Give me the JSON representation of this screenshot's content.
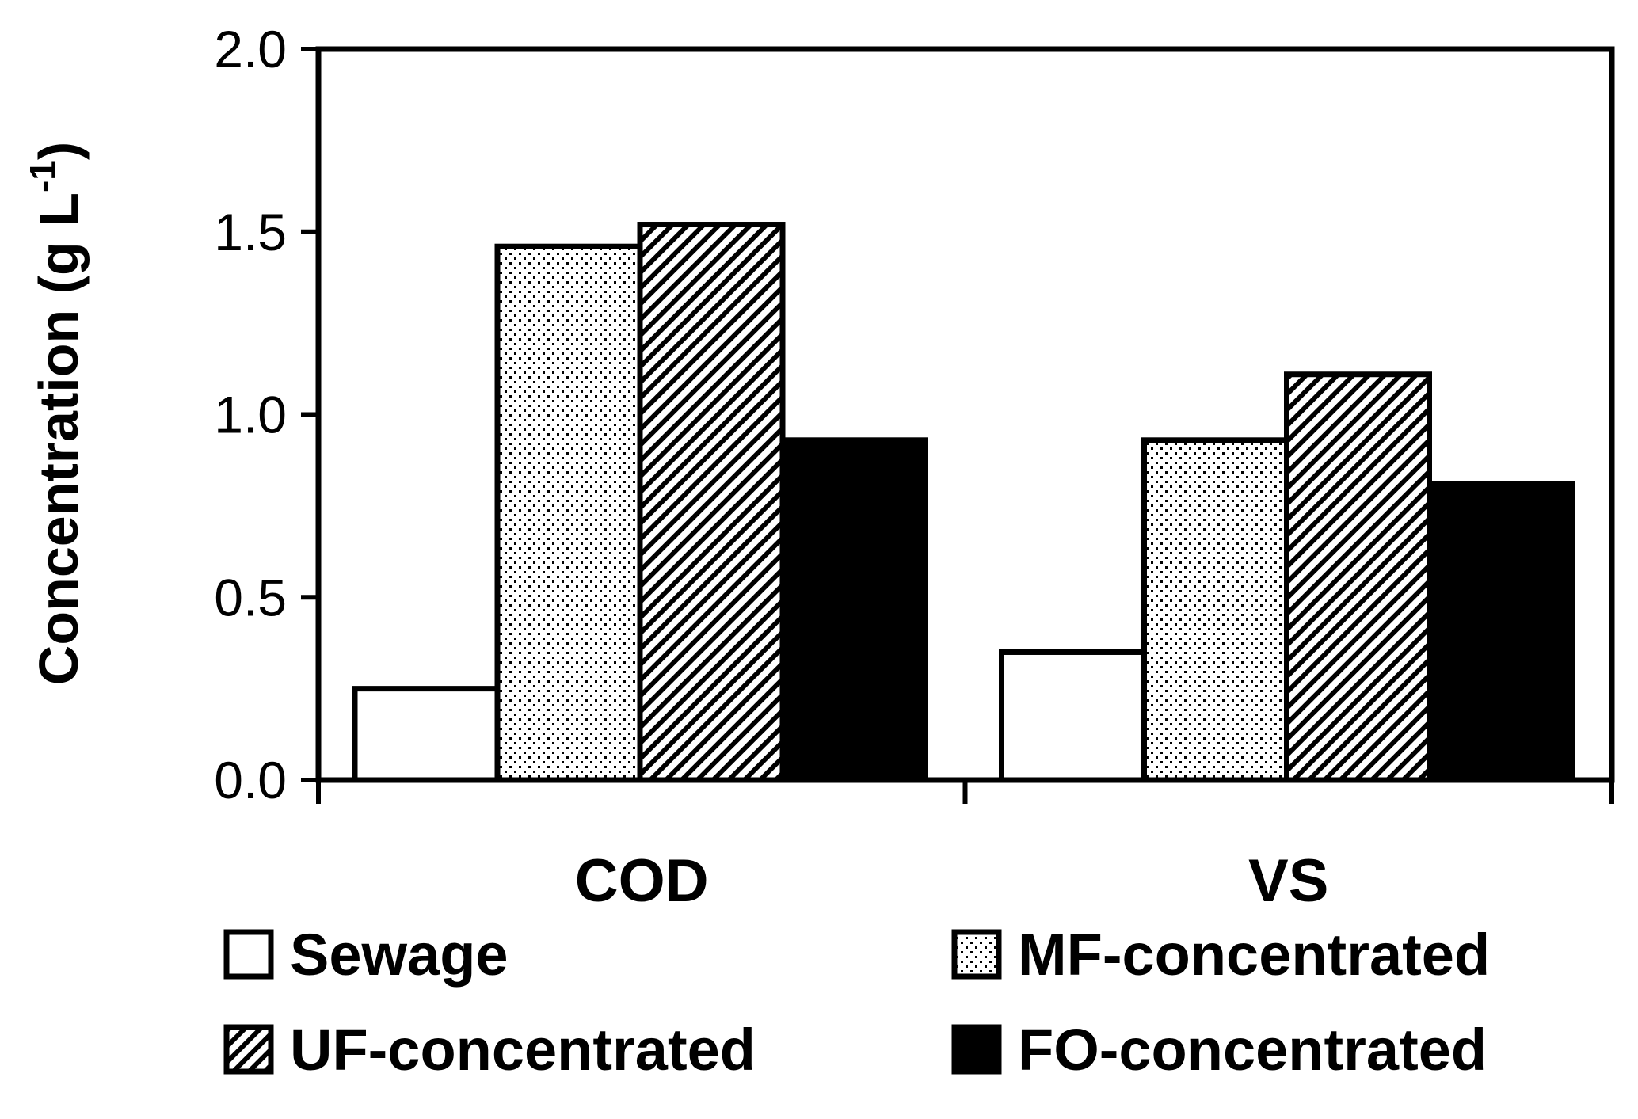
{
  "chart_data": {
    "type": "bar",
    "title": "",
    "xlabel": "",
    "ylabel": "Concentration (g L",
    "ylabel_sup": "-1",
    "ylabel_close": ")",
    "ylim": [
      0,
      2.0
    ],
    "yticks": [
      0.0,
      0.5,
      1.0,
      1.5,
      2.0
    ],
    "ytick_labels": [
      "0.0",
      "0.5",
      "1.0",
      "1.5",
      "2.0"
    ],
    "categories": [
      "COD",
      "VS"
    ],
    "grid": false,
    "legend_position": "bottom",
    "series": [
      {
        "name": "Sewage",
        "pattern": "none",
        "color": "#ffffff",
        "values": [
          0.25,
          0.35
        ]
      },
      {
        "name": "MF-concentrated",
        "pattern": "dots",
        "color": "#ffffff",
        "values": [
          1.46,
          0.93
        ]
      },
      {
        "name": "UF-concentrated",
        "pattern": "diagonal",
        "color": "#ffffff",
        "values": [
          1.52,
          1.11
        ]
      },
      {
        "name": "FO-concentrated",
        "pattern": "solid",
        "color": "#000000",
        "values": [
          0.93,
          0.81
        ]
      }
    ]
  }
}
